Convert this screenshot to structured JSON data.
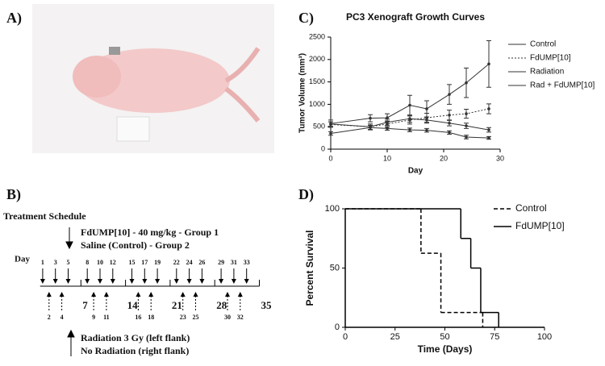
{
  "panels": {
    "a": "A)",
    "b": "B)",
    "c": "C)",
    "d": "D)"
  },
  "schedule": {
    "title": "Treatment Schedule",
    "drug": "FdUMP[10] - 40 mg/kg - Group 1",
    "control": "Saline (Control) - Group 2",
    "day_label": "Day",
    "injection_days": [
      1,
      3,
      5,
      8,
      10,
      12,
      15,
      17,
      19,
      22,
      24,
      26,
      29,
      31,
      33
    ],
    "radiation_days": [
      2,
      4,
      9,
      11,
      16,
      18,
      23,
      25,
      30,
      32
    ],
    "week_days": [
      7,
      14,
      21,
      28,
      35
    ],
    "radiation": "Radiation 3 Gy (left flank)",
    "no_radiation": "No Radiation (right flank)"
  },
  "chart_data": [
    {
      "type": "line",
      "title": "PC3 Xenograft Growth Curves",
      "xlabel": "Day",
      "ylabel": "Tumor Volume (mm³)",
      "x": [
        0,
        7,
        10,
        14,
        17,
        21,
        24,
        28
      ],
      "xlim": [
        0,
        30
      ],
      "xticks": [
        0,
        10,
        20,
        30
      ],
      "ylim": [
        0,
        2500
      ],
      "yticks": [
        0,
        500,
        1000,
        1500,
        2000,
        2500
      ],
      "legend": "outside-right",
      "series": [
        {
          "name": "Control",
          "color": "#333333",
          "dash": "solid",
          "values": [
            570,
            690,
            700,
            980,
            900,
            1220,
            1480,
            1900
          ],
          "errors": [
            80,
            80,
            90,
            220,
            180,
            220,
            330,
            520
          ]
        },
        {
          "name": "FdUMP[10]",
          "color": "#333333",
          "dash": "dotted",
          "values": [
            550,
            500,
            560,
            650,
            700,
            760,
            790,
            900
          ],
          "errors": [
            60,
            60,
            70,
            90,
            100,
            110,
            100,
            110
          ]
        },
        {
          "name": "Radiation",
          "color": "#333333",
          "dash": "solid",
          "values": [
            560,
            500,
            600,
            680,
            650,
            580,
            520,
            430
          ],
          "errors": [
            50,
            60,
            70,
            80,
            70,
            60,
            60,
            50
          ]
        },
        {
          "name": "Rad + FdUMP[10]",
          "color": "#333333",
          "dash": "solid",
          "values": [
            350,
            480,
            460,
            430,
            420,
            370,
            270,
            250
          ],
          "errors": [
            40,
            50,
            40,
            40,
            40,
            40,
            40,
            30
          ]
        }
      ]
    },
    {
      "type": "step",
      "xlabel": "Time (Days)",
      "ylabel": "Percent Survival",
      "xlim": [
        0,
        100
      ],
      "xticks": [
        0,
        25,
        50,
        75,
        100
      ],
      "ylim": [
        0,
        100
      ],
      "yticks": [
        0,
        50,
        100
      ],
      "legend": "outside-right",
      "series": [
        {
          "name": "Control",
          "color": "#000000",
          "dash": "dashed",
          "x": [
            0,
            38,
            48,
            69
          ],
          "values": [
            100,
            62.5,
            12.5,
            0
          ]
        },
        {
          "name": "FdUMP[10]",
          "color": "#000000",
          "dash": "solid",
          "x": [
            0,
            58,
            63,
            68,
            77
          ],
          "values": [
            100,
            75,
            50,
            12.5,
            0
          ]
        }
      ]
    }
  ]
}
